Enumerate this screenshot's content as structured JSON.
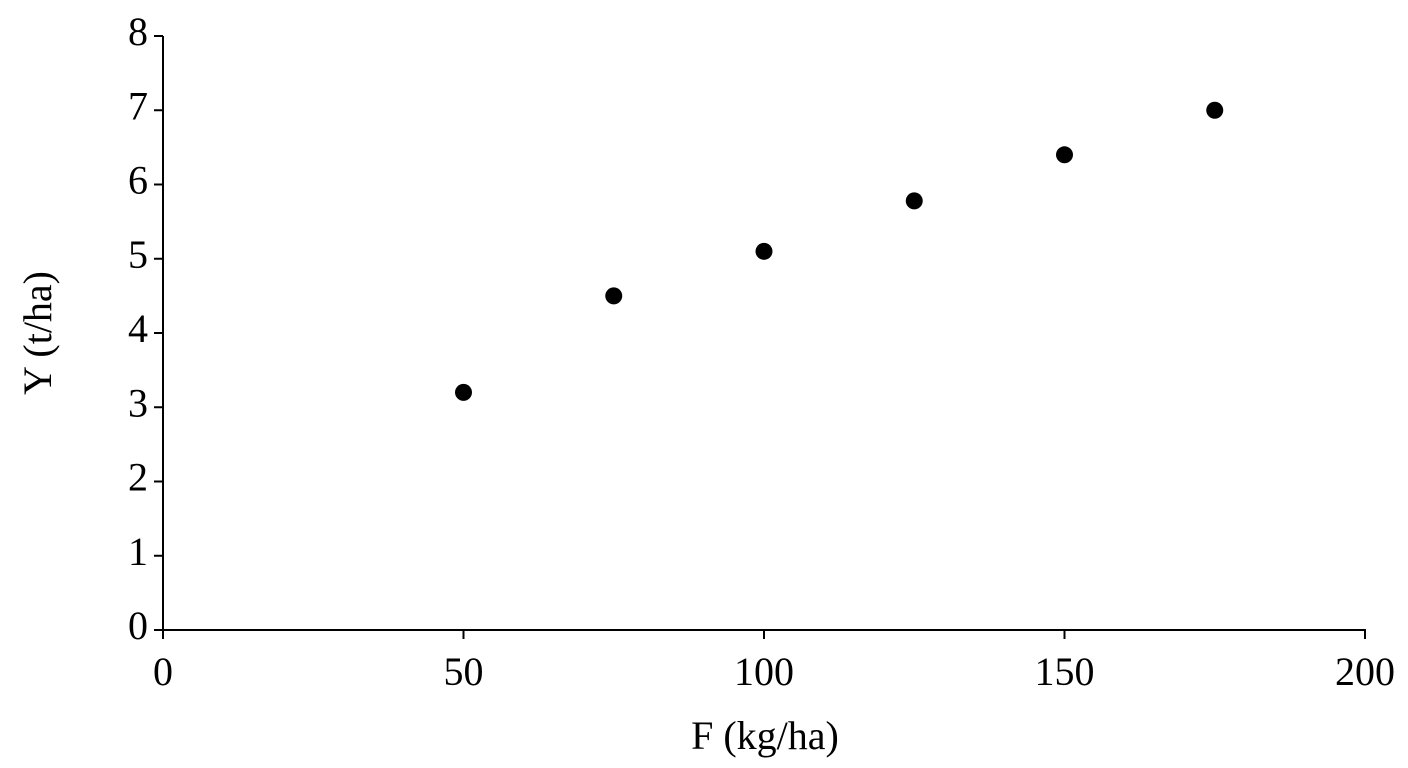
{
  "chart_data": {
    "type": "scatter",
    "x_label": "F (kg/ha)",
    "y_label": "Y (t/ha)",
    "x": [
      50,
      75,
      100,
      125,
      150,
      175
    ],
    "values": [
      3.2,
      4.5,
      5.1,
      5.78,
      6.4,
      7.0
    ],
    "color": "#000000",
    "xlim": [
      0,
      200
    ],
    "xticks": [
      0,
      50,
      100,
      150,
      200
    ],
    "ylim": [
      0,
      8
    ],
    "yticks": [
      0,
      1,
      2,
      3,
      4,
      5,
      6,
      7,
      8
    ],
    "grid": false
  }
}
